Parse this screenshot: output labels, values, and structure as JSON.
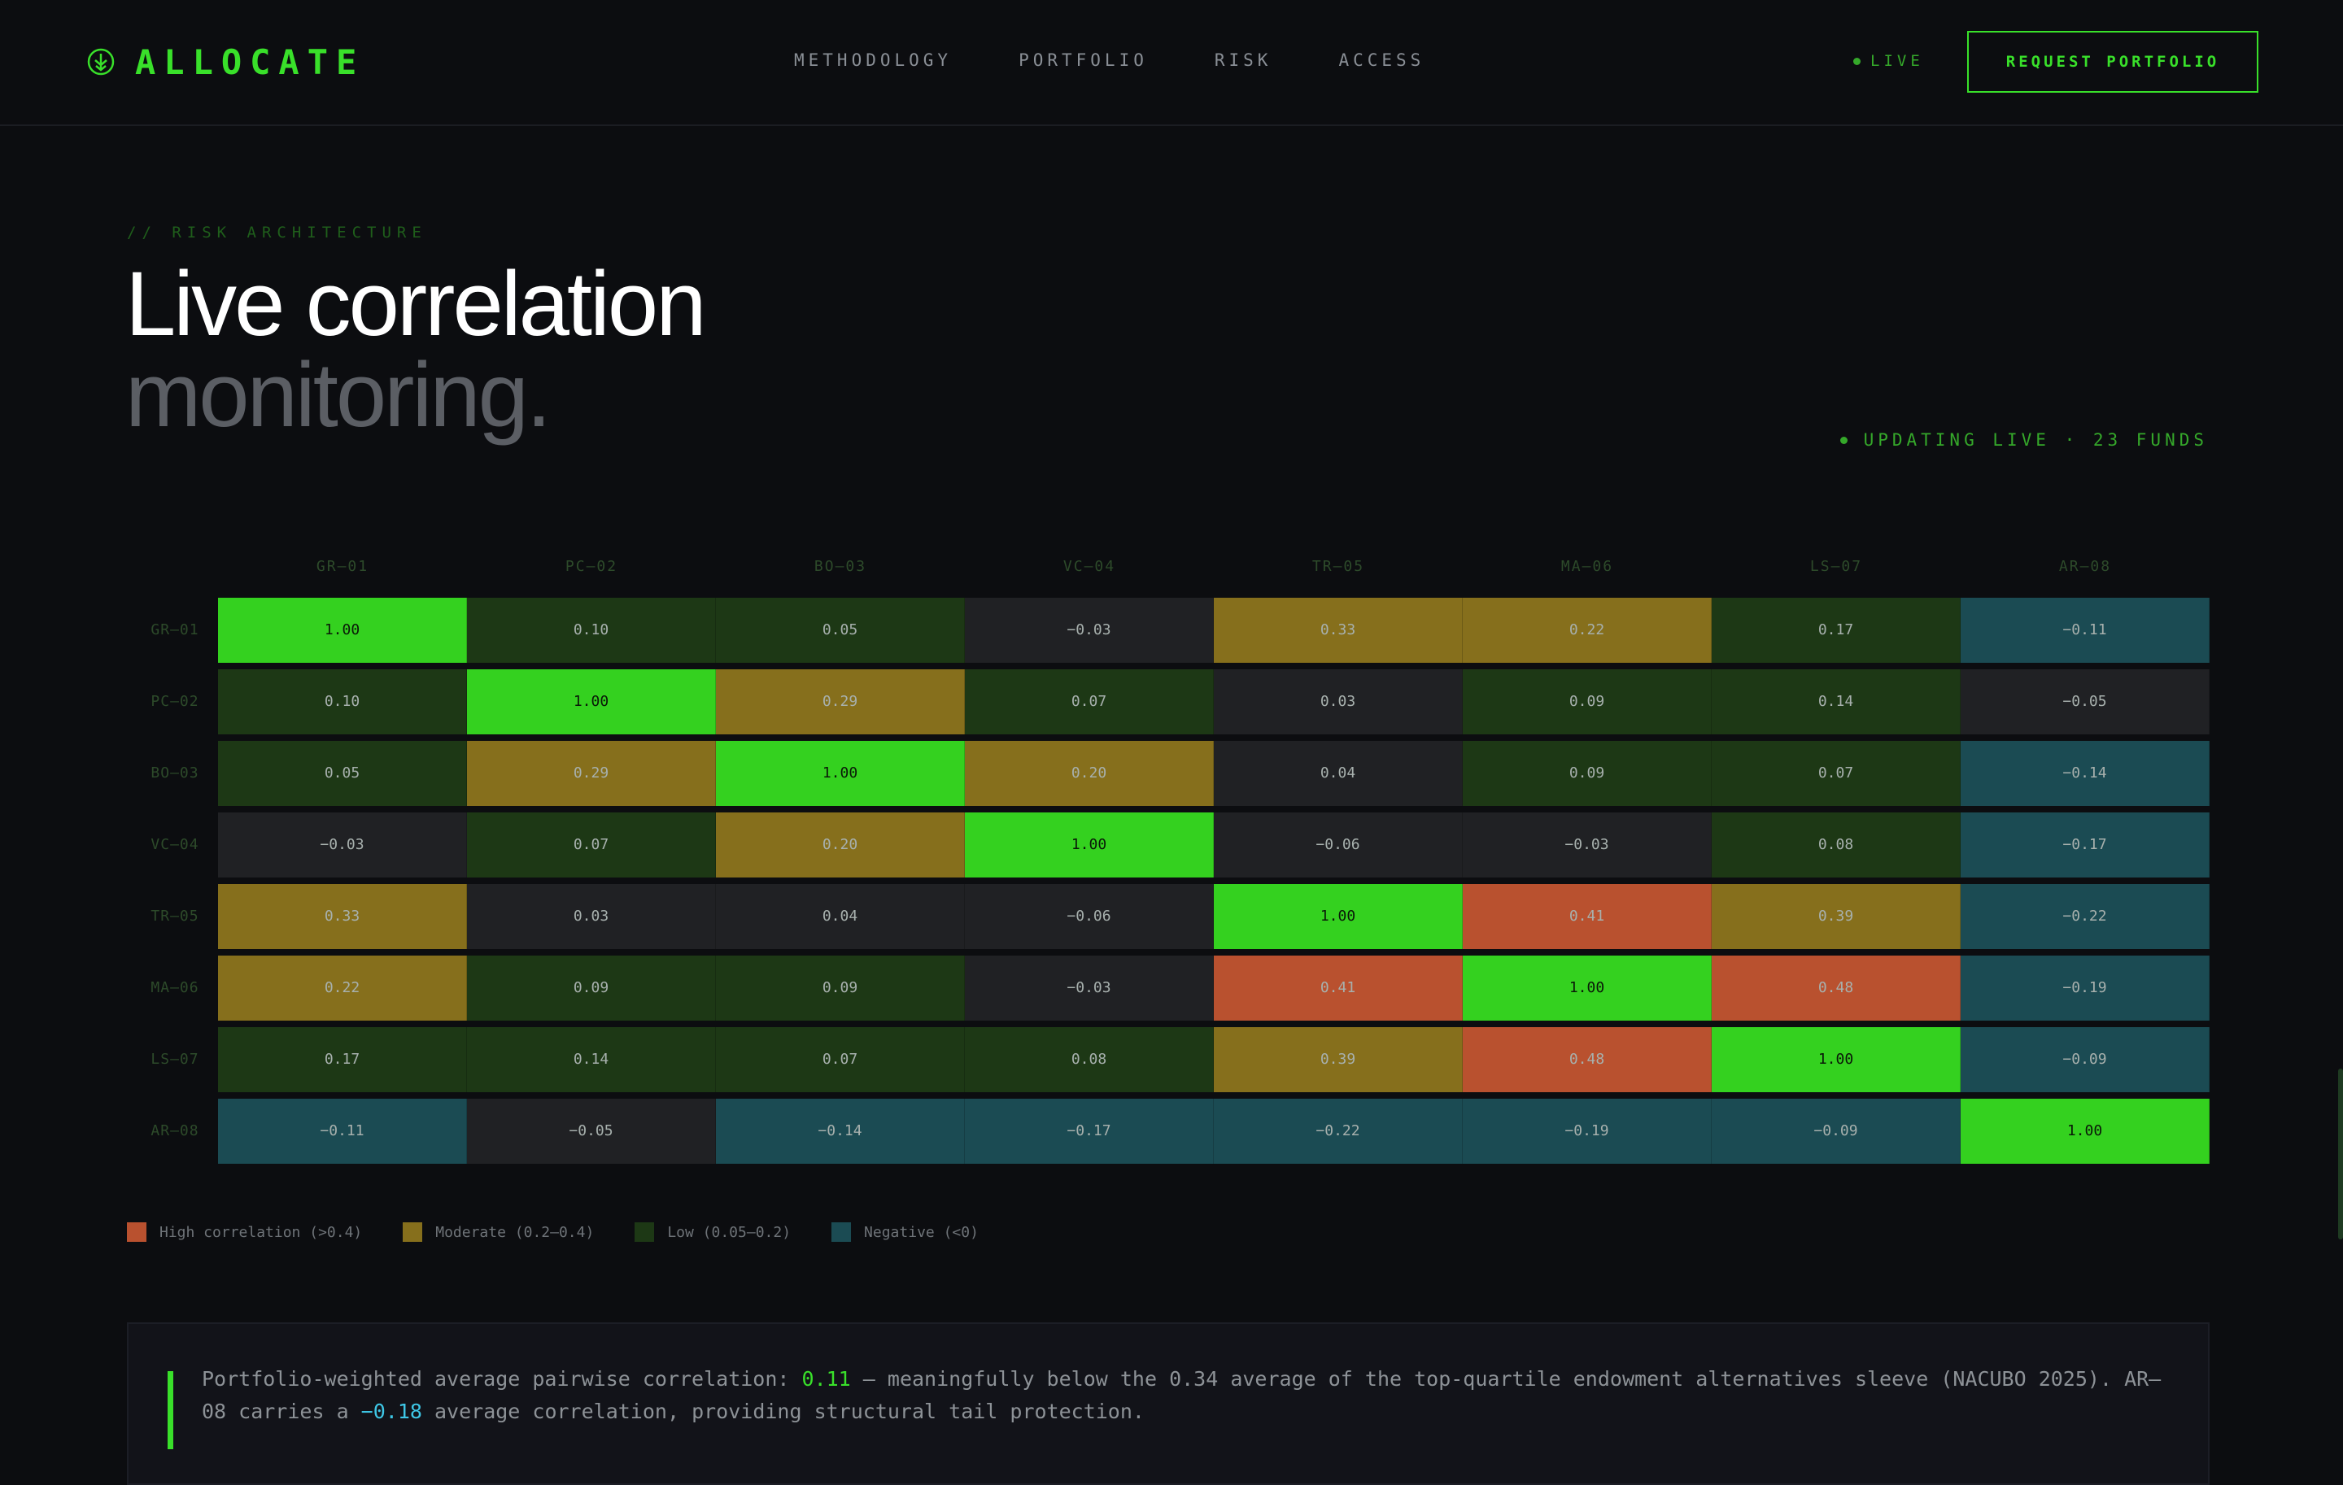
{
  "header": {
    "brand": "ALLOCATE",
    "nav": [
      "METHODOLOGY",
      "PORTFOLIO",
      "RISK",
      "ACCESS"
    ],
    "live_label": "LIVE",
    "cta_label": "REQUEST PORTFOLIO"
  },
  "section": {
    "eyebrow": "// RISK ARCHITECTURE",
    "title_line1": "Live correlation",
    "title_line2": "monitoring.",
    "status": "UPDATING LIVE · 23 FUNDS"
  },
  "colors": {
    "diag": "#34d11f",
    "high": "#b9512f",
    "moderate": "#866f1c",
    "low": "#1d3815",
    "neutral": "#202124",
    "negative": "#1b4b53",
    "accent": "#39e02a"
  },
  "chart_data": {
    "type": "heatmap",
    "x_labels": [
      "GR–01",
      "PC–02",
      "BO–03",
      "VC–04",
      "TR–05",
      "MA–06",
      "LS–07",
      "AR–08"
    ],
    "y_labels": [
      "GR–01",
      "PC–02",
      "BO–03",
      "VC–04",
      "TR–05",
      "MA–06",
      "LS–07",
      "AR–08"
    ],
    "values": [
      [
        "1.00",
        "0.10",
        "0.05",
        "−0.03",
        "0.33",
        "0.22",
        "0.17",
        "−0.11"
      ],
      [
        "0.10",
        "1.00",
        "0.29",
        "0.07",
        "0.03",
        "0.09",
        "0.14",
        "−0.05"
      ],
      [
        "0.05",
        "0.29",
        "1.00",
        "0.20",
        "0.04",
        "0.09",
        "0.07",
        "−0.14"
      ],
      [
        "−0.03",
        "0.07",
        "0.20",
        "1.00",
        "−0.06",
        "−0.03",
        "0.08",
        "−0.17"
      ],
      [
        "0.33",
        "0.03",
        "0.04",
        "−0.06",
        "1.00",
        "0.41",
        "0.39",
        "−0.22"
      ],
      [
        "0.22",
        "0.09",
        "0.09",
        "−0.03",
        "0.41",
        "1.00",
        "0.48",
        "−0.19"
      ],
      [
        "0.17",
        "0.14",
        "0.07",
        "0.08",
        "0.39",
        "0.48",
        "1.00",
        "−0.09"
      ],
      [
        "−0.11",
        "−0.05",
        "−0.14",
        "−0.17",
        "−0.22",
        "−0.19",
        "−0.09",
        "1.00"
      ]
    ],
    "legend": [
      {
        "label": "High correlation (>0.4)",
        "color": "#b9512f"
      },
      {
        "label": "Moderate (0.2–0.4)",
        "color": "#866f1c"
      },
      {
        "label": "Low (0.05–0.2)",
        "color": "#1d3815"
      },
      {
        "label": "Negative (<0)",
        "color": "#1b4b53"
      }
    ]
  },
  "note": {
    "part1": "Portfolio-weighted average pairwise correlation: ",
    "value1": "0.11",
    "part2": " — meaningfully below the 0.34 average of the top-quartile endowment alternatives sleeve (NACUBO 2025). AR–08 carries a ",
    "value2": "−0.18",
    "part3": " average correlation, providing structural tail protection."
  }
}
